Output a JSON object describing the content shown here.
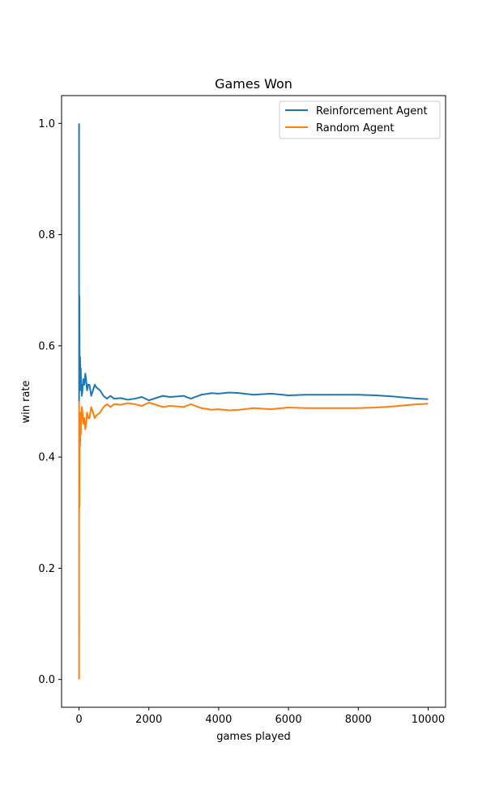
{
  "chart_data": {
    "type": "line",
    "title": "Games Won",
    "xlabel": "games played",
    "ylabel": "win rate",
    "xlim": [
      -500,
      10500
    ],
    "ylim": [
      -0.05,
      1.05
    ],
    "xticks": [
      0,
      2000,
      4000,
      6000,
      8000,
      10000
    ],
    "xtick_labels": [
      "0",
      "2000",
      "4000",
      "6000",
      "8000",
      "10000"
    ],
    "yticks": [
      0.0,
      0.2,
      0.4,
      0.6,
      0.8,
      1.0
    ],
    "ytick_labels": [
      "0.0",
      "0.2",
      "0.4",
      "0.6",
      "0.8",
      "1.0"
    ],
    "grid": false,
    "legend_position": "top-right",
    "series": [
      {
        "name": "Reinforcement Agent",
        "color": "#1f77b4",
        "x": [
          1,
          2,
          3,
          5,
          8,
          10,
          15,
          20,
          25,
          30,
          40,
          50,
          60,
          70,
          80,
          100,
          120,
          150,
          180,
          200,
          230,
          260,
          300,
          350,
          400,
          450,
          500,
          600,
          700,
          800,
          900,
          1000,
          1200,
          1400,
          1600,
          1800,
          2000,
          2200,
          2400,
          2600,
          2800,
          3000,
          3200,
          3500,
          3800,
          4000,
          4300,
          4600,
          5000,
          5500,
          6000,
          6500,
          7000,
          7500,
          8000,
          8500,
          9000,
          9500,
          10000
        ],
        "y": [
          1.0,
          0.5,
          0.67,
          0.6,
          0.56,
          0.69,
          0.6,
          0.56,
          0.52,
          0.58,
          0.55,
          0.56,
          0.52,
          0.53,
          0.51,
          0.52,
          0.54,
          0.53,
          0.55,
          0.54,
          0.52,
          0.53,
          0.53,
          0.51,
          0.52,
          0.53,
          0.525,
          0.52,
          0.51,
          0.505,
          0.51,
          0.505,
          0.506,
          0.503,
          0.505,
          0.508,
          0.502,
          0.506,
          0.51,
          0.508,
          0.509,
          0.51,
          0.505,
          0.512,
          0.515,
          0.514,
          0.516,
          0.515,
          0.512,
          0.514,
          0.511,
          0.512,
          0.512,
          0.512,
          0.512,
          0.511,
          0.509,
          0.506,
          0.504
        ]
      },
      {
        "name": "Random Agent",
        "color": "#ff7f0e",
        "x": [
          1,
          2,
          3,
          5,
          8,
          10,
          15,
          20,
          25,
          30,
          40,
          50,
          60,
          70,
          80,
          100,
          120,
          150,
          180,
          200,
          230,
          260,
          300,
          350,
          400,
          450,
          500,
          600,
          700,
          800,
          900,
          1000,
          1200,
          1400,
          1600,
          1800,
          2000,
          2200,
          2400,
          2600,
          2800,
          3000,
          3200,
          3500,
          3800,
          4000,
          4300,
          4600,
          5000,
          5500,
          6000,
          6500,
          7000,
          7500,
          8000,
          8500,
          9000,
          9500,
          10000
        ],
        "y": [
          0.0,
          0.5,
          0.33,
          0.4,
          0.44,
          0.31,
          0.4,
          0.44,
          0.48,
          0.42,
          0.45,
          0.44,
          0.48,
          0.47,
          0.49,
          0.48,
          0.46,
          0.47,
          0.45,
          0.46,
          0.48,
          0.47,
          0.47,
          0.49,
          0.48,
          0.47,
          0.475,
          0.48,
          0.49,
          0.495,
          0.49,
          0.495,
          0.494,
          0.497,
          0.495,
          0.492,
          0.498,
          0.494,
          0.49,
          0.492,
          0.491,
          0.49,
          0.495,
          0.488,
          0.485,
          0.486,
          0.484,
          0.485,
          0.488,
          0.486,
          0.489,
          0.488,
          0.488,
          0.488,
          0.488,
          0.489,
          0.491,
          0.494,
          0.496
        ]
      }
    ]
  }
}
